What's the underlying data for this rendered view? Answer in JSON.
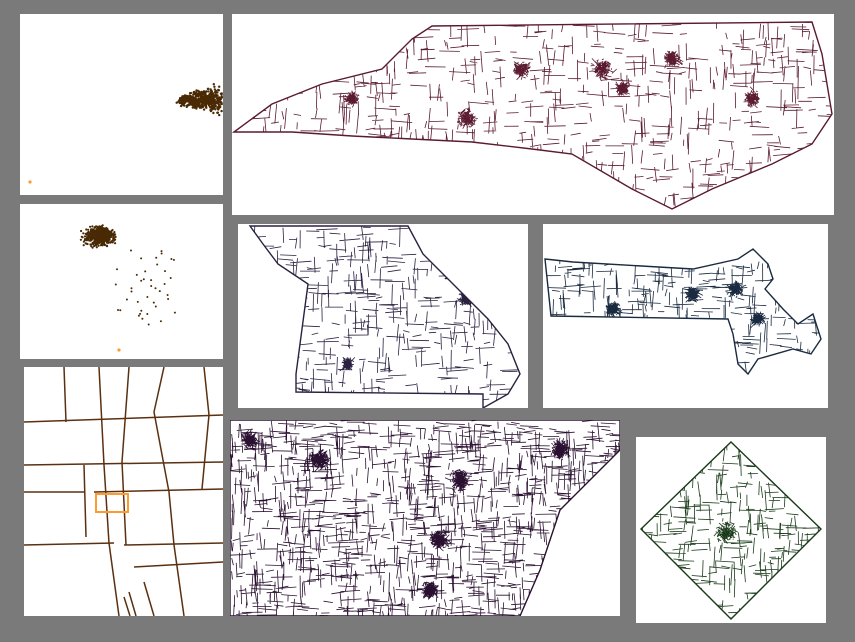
{
  "colors": {
    "background": "#7a7a7a",
    "panel_bg": "#ffffff",
    "scatter_points": "#4a2a05",
    "scatter_outlier": "#ff9a30",
    "street_lines": "#5a3010",
    "street_highlight": "#ff9a30",
    "north_carolina": "#5a1a30",
    "missouri": "#2a2040",
    "massachusetts": "#1a2a40",
    "mid_atlantic": "#2a1030",
    "washington_dc": "#1a3a1a"
  },
  "panels": [
    {
      "id": "scatter-top",
      "kind": "scatter-plot"
    },
    {
      "id": "scatter-middle",
      "kind": "scatter-plot"
    },
    {
      "id": "street-detail",
      "kind": "street-map"
    },
    {
      "id": "north-carolina",
      "kind": "boundary-map"
    },
    {
      "id": "missouri",
      "kind": "boundary-map"
    },
    {
      "id": "massachusetts",
      "kind": "boundary-map"
    },
    {
      "id": "mid-atlantic",
      "kind": "boundary-map"
    },
    {
      "id": "washington-dc",
      "kind": "boundary-map"
    }
  ]
}
